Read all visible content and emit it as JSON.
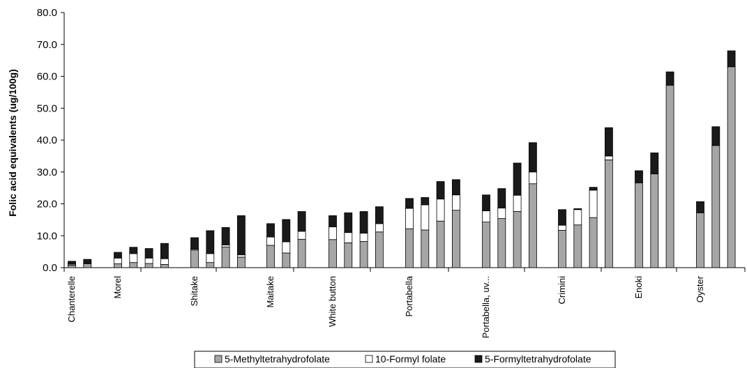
{
  "chart_data": {
    "type": "bar",
    "stacked": true,
    "ylabel": "Folic acid  equivalents (ug/100g)",
    "ylim": [
      0,
      80
    ],
    "yticks": [
      "0.0",
      "10.0",
      "20.0",
      "30.0",
      "40.0",
      "50.0",
      "60.0",
      "70.0",
      "80.0"
    ],
    "grid": false,
    "legend_position": "bottom",
    "colors": {
      "5-Methyltetrahydrofolate": "#a6a6a6",
      "10-Formyl folate": "#ffffff",
      "5-Formyltetrahydrofolate": "#1a1a1a"
    },
    "categories": [
      "Chanterelle",
      "Morel",
      "Shitake",
      "Maitake",
      "White button",
      "Portabella",
      "Portabella, uv...",
      "Crimini",
      "Enoki",
      "Oyster"
    ],
    "series_names": [
      "5-Methyltetrahydrofolate",
      "10-Formyl folate",
      "5-Formyltetrahydrofolate"
    ],
    "groups": [
      {
        "category": "Chanterelle",
        "bars": [
          [
            0.8,
            0.3,
            0.9
          ],
          [
            1.2,
            0.2,
            1.2
          ]
        ]
      },
      {
        "category": "Morel",
        "bars": [
          [
            1.2,
            1.8,
            1.8
          ],
          [
            1.6,
            2.8,
            2.0
          ],
          [
            1.3,
            1.7,
            3.0
          ],
          [
            1.0,
            1.8,
            4.8
          ]
        ]
      },
      {
        "category": "Shitake",
        "bars": [
          [
            5.5,
            0.3,
            3.6
          ],
          [
            1.6,
            2.8,
            7.2
          ],
          [
            6.5,
            0.6,
            5.5
          ],
          [
            3.3,
            0.7,
            12.3
          ]
        ]
      },
      {
        "category": "Maitake",
        "bars": [
          [
            7.0,
            2.6,
            4.2
          ],
          [
            4.6,
            3.5,
            7.0
          ],
          [
            8.9,
            2.5,
            6.2
          ]
        ]
      },
      {
        "category": "White button",
        "bars": [
          [
            8.8,
            4.0,
            3.5
          ],
          [
            7.8,
            3.2,
            6.2
          ],
          [
            8.2,
            2.6,
            6.8
          ],
          [
            11.2,
            2.6,
            5.3
          ]
        ]
      },
      {
        "category": "Portabella",
        "bars": [
          [
            12.2,
            6.4,
            3.1
          ],
          [
            11.8,
            7.9,
            2.3
          ],
          [
            14.6,
            6.9,
            5.5
          ],
          [
            18.0,
            4.8,
            4.8
          ]
        ]
      },
      {
        "category": "Portabella, uv...",
        "bars": [
          [
            14.3,
            3.5,
            5.0
          ],
          [
            15.4,
            3.3,
            6.1
          ],
          [
            17.6,
            5.1,
            10.1
          ],
          [
            26.3,
            3.7,
            9.2
          ]
        ]
      },
      {
        "category": "Crimini",
        "bars": [
          [
            11.7,
            1.6,
            4.9
          ],
          [
            13.4,
            4.8,
            0.3
          ],
          [
            15.7,
            8.6,
            0.9
          ],
          [
            33.8,
            1.2,
            8.9
          ]
        ]
      },
      {
        "category": "Enoki",
        "bars": [
          [
            26.6,
            0.0,
            3.8
          ],
          [
            29.4,
            0.0,
            6.6
          ],
          [
            57.2,
            0.0,
            4.2
          ]
        ]
      },
      {
        "category": "Oyster",
        "bars": [
          [
            17.2,
            0.0,
            3.5
          ],
          [
            38.3,
            0.0,
            5.9
          ],
          [
            63.0,
            0.0,
            5.0
          ]
        ]
      }
    ]
  }
}
